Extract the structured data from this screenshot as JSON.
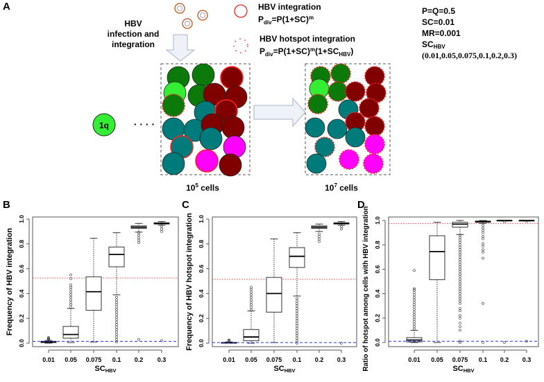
{
  "panelA": {
    "letter": "A",
    "infection_label": [
      "HBV",
      "infection and",
      "integration"
    ],
    "legend_integration": {
      "title": "HBV integration",
      "formula_main": "P",
      "formula_sub": "div",
      "formula_rest": "=P(1+SC)",
      "formula_sup": "m"
    },
    "legend_hotspot": {
      "title": "HBV hotspot integration",
      "formula_main": "P",
      "formula_sub": "div",
      "formula_rest": "=P(1+SC)",
      "formula_sup": "m",
      "formula_tail": "(1+SC",
      "formula_tail_sub": "HBV",
      "formula_end": ")"
    },
    "params": [
      "P=Q=0.5",
      "SC=0.01",
      "MR=0.001"
    ],
    "sc_hbv_label": "SC",
    "sc_hbv_sub": "HBV",
    "sc_hbv_values": "(0.01,0.05,0.075,0.1,0.2,0.3)",
    "start_cell": "1q",
    "dots": "· · · ·",
    "cells_left": {
      "base": "10",
      "exp": "5",
      "unit": " cells"
    },
    "cells_right": {
      "base": "10",
      "exp": "7",
      "unit": " cells"
    },
    "colors": {
      "light_green": "#33ee33",
      "dark_green": "#0b7a0b",
      "maroon": "#800000",
      "teal": "#007b7b",
      "magenta": "#ff00ff",
      "red": "#ff2020"
    }
  },
  "chart_data": [
    {
      "letter": "B",
      "type": "boxplot",
      "ylabel": "Frequency of HBV integration",
      "xlabel_main": "SC",
      "xlabel_sub": "HBV",
      "categories": [
        "0.01",
        "0.05",
        "0.075",
        "0.1",
        "0.2",
        "0.3"
      ],
      "yticks": [
        "0.0",
        "0.2",
        "0.4",
        "0.6",
        "0.8",
        "1.0"
      ],
      "ylim": [
        0,
        1
      ],
      "red_line": 0.525,
      "blue_line": 0.015,
      "boxes": [
        {
          "wlo": 0.0,
          "q1": 0.005,
          "med": 0.01,
          "q3": 0.015,
          "whi": 0.022,
          "out": [
            0.025,
            0.03,
            0.035,
            0.04,
            0.045
          ]
        },
        {
          "wlo": 0.005,
          "q1": 0.04,
          "med": 0.07,
          "q3": 0.135,
          "whi": 0.28,
          "out": [
            0.29,
            0.31,
            0.33,
            0.35,
            0.37,
            0.39,
            0.41,
            0.43,
            0.45,
            0.47,
            0.52,
            0.55
          ]
        },
        {
          "wlo": 0.01,
          "q1": 0.265,
          "med": 0.415,
          "q3": 0.535,
          "whi": 0.845,
          "out": []
        },
        {
          "wlo": 0.39,
          "q1": 0.615,
          "med": 0.715,
          "q3": 0.775,
          "whi": 0.89,
          "out": [
            0.01,
            0.03,
            0.05,
            0.07,
            0.09,
            0.11,
            0.13,
            0.15,
            0.17,
            0.19,
            0.21,
            0.23,
            0.25,
            0.27,
            0.29,
            0.31,
            0.33,
            0.35,
            0.37
          ]
        },
        {
          "wlo": 0.895,
          "q1": 0.925,
          "med": 0.935,
          "q3": 0.945,
          "whi": 0.965,
          "out": [
            0.03,
            0.81,
            0.83,
            0.85,
            0.87,
            0.89
          ]
        },
        {
          "wlo": 0.95,
          "q1": 0.96,
          "med": 0.965,
          "q3": 0.97,
          "whi": 0.98,
          "out": [
            0.02,
            0.9,
            0.92,
            0.94
          ]
        }
      ]
    },
    {
      "letter": "C",
      "type": "boxplot",
      "ylabel": "Frequency of HBV hotspot integration",
      "xlabel_main": "SC",
      "xlabel_sub": "HBV",
      "categories": [
        "0.01",
        "0.05",
        "0.075",
        "0.1",
        "0.2",
        "0.3"
      ],
      "yticks": [
        "0.0",
        "0.2",
        "0.4",
        "0.6",
        "0.8",
        "1.0"
      ],
      "ylim": [
        0,
        1
      ],
      "red_line": 0.515,
      "blue_line": 0.005,
      "boxes": [
        {
          "wlo": 0.0,
          "q1": 0.0,
          "med": 0.003,
          "q3": 0.006,
          "whi": 0.01,
          "out": [
            0.015,
            0.02,
            0.025
          ]
        },
        {
          "wlo": 0.0,
          "q1": 0.02,
          "med": 0.05,
          "q3": 0.11,
          "whi": 0.26,
          "out": [
            0.27,
            0.29,
            0.31,
            0.33,
            0.35,
            0.37,
            0.39,
            0.41,
            0.43,
            0.45
          ]
        },
        {
          "wlo": 0.005,
          "q1": 0.25,
          "med": 0.4,
          "q3": 0.53,
          "whi": 0.84,
          "out": []
        },
        {
          "wlo": 0.38,
          "q1": 0.61,
          "med": 0.7,
          "q3": 0.77,
          "whi": 0.89,
          "out": [
            0.0,
            0.02,
            0.04,
            0.06,
            0.08,
            0.1,
            0.12,
            0.14,
            0.16,
            0.18,
            0.2,
            0.22,
            0.24,
            0.26,
            0.28,
            0.3,
            0.32,
            0.34,
            0.36
          ]
        },
        {
          "wlo": 0.9,
          "q1": 0.925,
          "med": 0.935,
          "q3": 0.945,
          "whi": 0.96,
          "out": [
            0.82,
            0.84,
            0.86,
            0.88
          ]
        },
        {
          "wlo": 0.95,
          "q1": 0.96,
          "med": 0.965,
          "q3": 0.97,
          "whi": 0.98,
          "out": [
            0.0,
            0.92,
            0.94
          ]
        }
      ]
    },
    {
      "letter": "D",
      "type": "boxplot",
      "ylabel": "Ratio of hotspot among cells with HBV integration",
      "xlabel_main": "SC",
      "xlabel_sub": "HBV",
      "categories": [
        "0.01",
        "0.05",
        "0.075",
        "0.1",
        "0.2",
        "0.3"
      ],
      "yticks": [
        "0.0",
        "0.2",
        "0.4",
        "0.6",
        "0.8",
        "1.0"
      ],
      "ylim": [
        0,
        1
      ],
      "red_line": 0.975,
      "blue_line": 0.01,
      "boxes": [
        {
          "wlo": 0.0,
          "q1": 0.005,
          "med": 0.02,
          "q3": 0.04,
          "whi": 0.1,
          "out": [
            0.11,
            0.13,
            0.15,
            0.17,
            0.19,
            0.21,
            0.23,
            0.25,
            0.27,
            0.29,
            0.31,
            0.33,
            0.35,
            0.37,
            0.39,
            0.41,
            0.43,
            0.44,
            0.59
          ]
        },
        {
          "wlo": 0.0,
          "q1": 0.515,
          "med": 0.745,
          "q3": 0.875,
          "whi": 0.985,
          "out": []
        },
        {
          "wlo": 0.885,
          "q1": 0.945,
          "med": 0.97,
          "q3": 0.985,
          "whi": 1.0,
          "out": [
            0.0,
            0.01,
            0.1,
            0.13,
            0.16,
            0.2,
            0.22,
            0.26,
            0.28,
            0.32,
            0.34,
            0.36,
            0.38,
            0.4,
            0.42,
            0.44,
            0.46,
            0.48,
            0.5,
            0.52,
            0.54,
            0.56,
            0.58,
            0.6,
            0.62,
            0.64,
            0.66,
            0.68,
            0.7,
            0.72,
            0.74,
            0.76,
            0.78,
            0.8,
            0.82,
            0.84,
            0.86,
            0.88
          ]
        },
        {
          "wlo": 0.975,
          "q1": 0.985,
          "med": 0.99,
          "q3": 0.995,
          "whi": 1.0,
          "out": [
            0.0,
            0.32,
            0.69,
            0.74,
            0.76,
            0.79,
            0.81,
            0.85,
            0.87,
            0.9,
            0.92,
            0.94,
            0.96
          ]
        },
        {
          "wlo": 0.995,
          "q1": 0.998,
          "med": 1.0,
          "q3": 1.0,
          "whi": 1.0,
          "out": [
            0.0,
            0.99
          ]
        },
        {
          "wlo": 0.995,
          "q1": 0.998,
          "med": 1.0,
          "q3": 1.0,
          "whi": 1.0,
          "out": [
            0.01,
            0.995
          ]
        }
      ]
    }
  ]
}
